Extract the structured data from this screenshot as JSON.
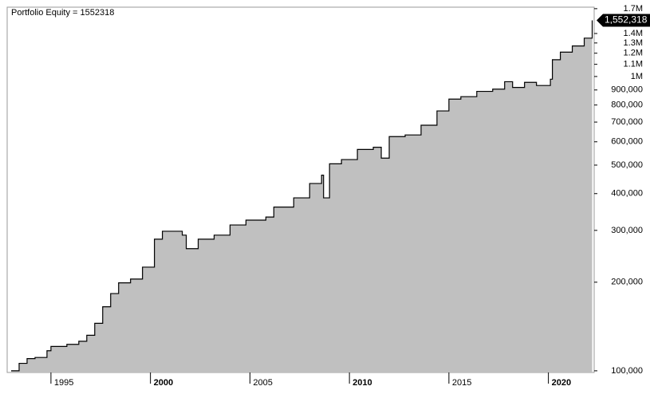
{
  "chart_data": {
    "type": "area",
    "title": "Portfolio Equity = 1552318",
    "log_scale": true,
    "color": "#c0c0c0",
    "line_color": "#000000",
    "x": [
      1993.0,
      1993.4,
      1993.8,
      1994.2,
      1994.8,
      1995.0,
      1995.8,
      1996.4,
      1996.8,
      1997.2,
      1997.6,
      1998.0,
      1998.4,
      1999.0,
      1999.6,
      2000.2,
      2000.6,
      2001.1,
      2001.6,
      2001.8,
      2002.4,
      2003.2,
      2004.0,
      2004.8,
      2005.8,
      2006.2,
      2007.2,
      2008.0,
      2008.6,
      2008.7,
      2009.0,
      2009.6,
      2010.4,
      2011.2,
      2011.6,
      2012.0,
      2012.8,
      2013.6,
      2014.4,
      2015.0,
      2015.6,
      2016.4,
      2017.2,
      2017.8,
      2018.2,
      2018.8,
      2019.4,
      2020.1,
      2020.2,
      2020.6,
      2021.2,
      2021.8,
      2022.2
    ],
    "values": [
      100000,
      106000,
      110000,
      111000,
      117000,
      121000,
      123000,
      126000,
      132000,
      145000,
      165000,
      183000,
      199000,
      205000,
      225000,
      280000,
      298000,
      298000,
      289000,
      260000,
      280000,
      289000,
      313000,
      325000,
      333000,
      360000,
      387000,
      433000,
      462000,
      387000,
      505000,
      522000,
      565000,
      575000,
      528000,
      625000,
      633000,
      683000,
      764000,
      838000,
      854000,
      890000,
      906000,
      960000,
      918000,
      955000,
      932000,
      979000,
      1140000,
      1210000,
      1270000,
      1350000,
      1552318
    ],
    "last_label": "1,552,318",
    "xlim": [
      1992.8,
      2022.3
    ],
    "xticks": [
      1995,
      2000,
      2005,
      2010,
      2015,
      2020
    ],
    "ylim": [
      98700,
      1720000
    ],
    "yticks": [
      {
        "value": 100000,
        "label": "100,000"
      },
      {
        "value": 200000,
        "label": "200,000"
      },
      {
        "value": 300000,
        "label": "300,000"
      },
      {
        "value": 400000,
        "label": "400,000"
      },
      {
        "value": 500000,
        "label": "500,000"
      },
      {
        "value": 600000,
        "label": "600,000"
      },
      {
        "value": 700000,
        "label": "700,000"
      },
      {
        "value": 800000,
        "label": "800,000"
      },
      {
        "value": 900000,
        "label": "900,000"
      },
      {
        "value": 1000000,
        "label": "1M"
      },
      {
        "value": 1100000,
        "label": "1.1M"
      },
      {
        "value": 1200000,
        "label": "1.2M"
      },
      {
        "value": 1300000,
        "label": "1.3M"
      },
      {
        "value": 1400000,
        "label": "1.4M"
      },
      {
        "value": 1700000,
        "label": "1.7M"
      }
    ]
  }
}
